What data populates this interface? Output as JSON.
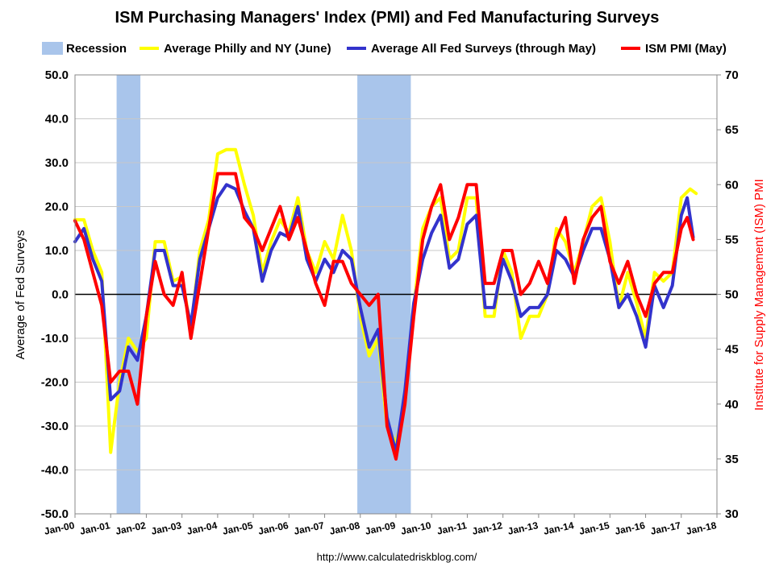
{
  "chart_data": {
    "type": "line",
    "title": "ISM Purchasing Managers' Index (PMI) and Fed Manufacturing Surveys",
    "source_url": "http://www.calculatedriskblog.com/",
    "ylabel_left": "Average of Fed Surveys",
    "ylabel_right": "Institute for Supply Management (ISM) PMI",
    "ylim_left": [
      -50,
      50
    ],
    "ylim_right": [
      30,
      70
    ],
    "yticks_left": [
      "50.0",
      "40.0",
      "30.0",
      "20.0",
      "10.0",
      "0.0",
      "-10.0",
      "-20.0",
      "-30.0",
      "-40.0",
      "-50.0"
    ],
    "yticks_right": [
      "70",
      "65",
      "60",
      "55",
      "50",
      "45",
      "40",
      "35",
      "30"
    ],
    "x_tick_labels": [
      "Jan-00",
      "Jan-01",
      "Jan-02",
      "Jan-03",
      "Jan-04",
      "Jan-05",
      "Jan-06",
      "Jan-07",
      "Jan-08",
      "Jan-09",
      "Jan-10",
      "Jan-11",
      "Jan-12",
      "Jan-13",
      "Jan-14",
      "Jan-15",
      "Jan-16",
      "Jan-17",
      "Jan-18"
    ],
    "xlim": [
      "2000-01",
      "2018-01"
    ],
    "grid": "horizontal",
    "legend_position": "top",
    "zero_line": 0,
    "recessions": [
      {
        "start": "2001-03",
        "end": "2001-11"
      },
      {
        "start": "2007-12",
        "end": "2009-06"
      }
    ],
    "legend": [
      {
        "label": "Recession",
        "color": "#a9c5eb",
        "kind": "box"
      },
      {
        "label": "Average Philly and NY (June)",
        "color": "#ffff00",
        "kind": "line"
      },
      {
        "label": "Average All Fed Surveys (through May)",
        "color": "#3333cc",
        "kind": "line"
      },
      {
        "label": "ISM PMI (May)",
        "color": "#ff0000",
        "kind": "line"
      }
    ],
    "series": [
      {
        "name": "Average Philly and NY (June)",
        "axis": "left",
        "color": "#ffff00",
        "points": [
          [
            "2000-01",
            17
          ],
          [
            "2000-04",
            17
          ],
          [
            "2000-07",
            10
          ],
          [
            "2000-10",
            5
          ],
          [
            "2001-01",
            -36
          ],
          [
            "2001-04",
            -20
          ],
          [
            "2001-07",
            -10
          ],
          [
            "2001-10",
            -13
          ],
          [
            "2002-01",
            -10
          ],
          [
            "2002-04",
            12
          ],
          [
            "2002-07",
            12
          ],
          [
            "2002-10",
            3
          ],
          [
            "2003-01",
            4
          ],
          [
            "2003-04",
            -8
          ],
          [
            "2003-07",
            10
          ],
          [
            "2003-10",
            17
          ],
          [
            "2004-01",
            32
          ],
          [
            "2004-04",
            33
          ],
          [
            "2004-07",
            33
          ],
          [
            "2004-10",
            25
          ],
          [
            "2005-01",
            18
          ],
          [
            "2005-04",
            5
          ],
          [
            "2005-07",
            12
          ],
          [
            "2005-10",
            17
          ],
          [
            "2006-01",
            14
          ],
          [
            "2006-04",
            22
          ],
          [
            "2006-07",
            10
          ],
          [
            "2006-10",
            5
          ],
          [
            "2007-01",
            12
          ],
          [
            "2007-04",
            8
          ],
          [
            "2007-07",
            18
          ],
          [
            "2007-10",
            10
          ],
          [
            "2008-01",
            -5
          ],
          [
            "2008-04",
            -14
          ],
          [
            "2008-07",
            -10
          ],
          [
            "2008-10",
            -30
          ],
          [
            "2009-01",
            -34
          ],
          [
            "2009-04",
            -25
          ],
          [
            "2009-07",
            -3
          ],
          [
            "2009-10",
            15
          ],
          [
            "2010-01",
            20
          ],
          [
            "2010-04",
            22
          ],
          [
            "2010-07",
            8
          ],
          [
            "2010-10",
            10
          ],
          [
            "2011-01",
            22
          ],
          [
            "2011-04",
            22
          ],
          [
            "2011-07",
            -5
          ],
          [
            "2011-10",
            -5
          ],
          [
            "2012-01",
            10
          ],
          [
            "2012-04",
            5
          ],
          [
            "2012-07",
            -10
          ],
          [
            "2012-10",
            -5
          ],
          [
            "2013-01",
            -5
          ],
          [
            "2013-04",
            0
          ],
          [
            "2013-07",
            15
          ],
          [
            "2013-10",
            12
          ],
          [
            "2014-01",
            5
          ],
          [
            "2014-04",
            12
          ],
          [
            "2014-07",
            20
          ],
          [
            "2014-10",
            22
          ],
          [
            "2015-01",
            12
          ],
          [
            "2015-04",
            -3
          ],
          [
            "2015-07",
            5
          ],
          [
            "2015-10",
            -2
          ],
          [
            "2016-01",
            -10
          ],
          [
            "2016-04",
            5
          ],
          [
            "2016-07",
            3
          ],
          [
            "2016-10",
            5
          ],
          [
            "2017-01",
            22
          ],
          [
            "2017-04",
            24
          ],
          [
            "2017-06",
            23
          ]
        ]
      },
      {
        "name": "Average All Fed Surveys (through May)",
        "axis": "left",
        "color": "#3333cc",
        "points": [
          [
            "2000-01",
            12
          ],
          [
            "2000-04",
            15
          ],
          [
            "2000-07",
            8
          ],
          [
            "2000-10",
            3
          ],
          [
            "2001-01",
            -24
          ],
          [
            "2001-04",
            -22
          ],
          [
            "2001-07",
            -12
          ],
          [
            "2001-10",
            -15
          ],
          [
            "2002-01",
            -5
          ],
          [
            "2002-04",
            10
          ],
          [
            "2002-07",
            10
          ],
          [
            "2002-10",
            2
          ],
          [
            "2003-01",
            2
          ],
          [
            "2003-04",
            -7
          ],
          [
            "2003-07",
            8
          ],
          [
            "2003-10",
            15
          ],
          [
            "2004-01",
            22
          ],
          [
            "2004-04",
            25
          ],
          [
            "2004-07",
            24
          ],
          [
            "2004-10",
            19
          ],
          [
            "2005-01",
            15
          ],
          [
            "2005-04",
            3
          ],
          [
            "2005-07",
            10
          ],
          [
            "2005-10",
            14
          ],
          [
            "2006-01",
            13
          ],
          [
            "2006-04",
            20
          ],
          [
            "2006-07",
            8
          ],
          [
            "2006-10",
            3
          ],
          [
            "2007-01",
            8
          ],
          [
            "2007-04",
            5
          ],
          [
            "2007-07",
            10
          ],
          [
            "2007-10",
            8
          ],
          [
            "2008-01",
            -3
          ],
          [
            "2008-04",
            -12
          ],
          [
            "2008-07",
            -8
          ],
          [
            "2008-10",
            -28
          ],
          [
            "2009-01",
            -36
          ],
          [
            "2009-04",
            -22
          ],
          [
            "2009-07",
            -2
          ],
          [
            "2009-10",
            8
          ],
          [
            "2010-01",
            14
          ],
          [
            "2010-04",
            18
          ],
          [
            "2010-07",
            6
          ],
          [
            "2010-10",
            8
          ],
          [
            "2011-01",
            16
          ],
          [
            "2011-04",
            18
          ],
          [
            "2011-07",
            -3
          ],
          [
            "2011-10",
            -3
          ],
          [
            "2012-01",
            8
          ],
          [
            "2012-04",
            3
          ],
          [
            "2012-07",
            -5
          ],
          [
            "2012-10",
            -3
          ],
          [
            "2013-01",
            -3
          ],
          [
            "2013-04",
            0
          ],
          [
            "2013-07",
            10
          ],
          [
            "2013-10",
            8
          ],
          [
            "2014-01",
            4
          ],
          [
            "2014-04",
            10
          ],
          [
            "2014-07",
            15
          ],
          [
            "2014-10",
            15
          ],
          [
            "2015-01",
            8
          ],
          [
            "2015-04",
            -3
          ],
          [
            "2015-07",
            0
          ],
          [
            "2015-10",
            -5
          ],
          [
            "2016-01",
            -12
          ],
          [
            "2016-04",
            2
          ],
          [
            "2016-07",
            -3
          ],
          [
            "2016-10",
            2
          ],
          [
            "2017-01",
            18
          ],
          [
            "2017-03",
            22
          ],
          [
            "2017-05",
            13
          ]
        ]
      },
      {
        "name": "ISM PMI (May)",
        "axis": "right",
        "color": "#ff0000",
        "points": [
          [
            "2000-01",
            56.7
          ],
          [
            "2000-04",
            55
          ],
          [
            "2000-07",
            52
          ],
          [
            "2000-10",
            49
          ],
          [
            "2001-01",
            42
          ],
          [
            "2001-04",
            43
          ],
          [
            "2001-07",
            43
          ],
          [
            "2001-10",
            40
          ],
          [
            "2002-01",
            48
          ],
          [
            "2002-04",
            53
          ],
          [
            "2002-07",
            50
          ],
          [
            "2002-10",
            49
          ],
          [
            "2003-01",
            52
          ],
          [
            "2003-04",
            46
          ],
          [
            "2003-07",
            51
          ],
          [
            "2003-10",
            56
          ],
          [
            "2004-01",
            61
          ],
          [
            "2004-04",
            61
          ],
          [
            "2004-07",
            61
          ],
          [
            "2004-10",
            57
          ],
          [
            "2005-01",
            56
          ],
          [
            "2005-04",
            54
          ],
          [
            "2005-07",
            56
          ],
          [
            "2005-10",
            58
          ],
          [
            "2006-01",
            55
          ],
          [
            "2006-04",
            57
          ],
          [
            "2006-07",
            54
          ],
          [
            "2006-10",
            51
          ],
          [
            "2007-01",
            49
          ],
          [
            "2007-04",
            53
          ],
          [
            "2007-07",
            53
          ],
          [
            "2007-10",
            51
          ],
          [
            "2008-01",
            50
          ],
          [
            "2008-04",
            49
          ],
          [
            "2008-07",
            50
          ],
          [
            "2008-10",
            38
          ],
          [
            "2009-01",
            35
          ],
          [
            "2009-04",
            40
          ],
          [
            "2009-07",
            48
          ],
          [
            "2009-10",
            55
          ],
          [
            "2010-01",
            58
          ],
          [
            "2010-04",
            60
          ],
          [
            "2010-07",
            55
          ],
          [
            "2010-10",
            57
          ],
          [
            "2011-01",
            60
          ],
          [
            "2011-04",
            60
          ],
          [
            "2011-07",
            51
          ],
          [
            "2011-10",
            51
          ],
          [
            "2012-01",
            54
          ],
          [
            "2012-04",
            54
          ],
          [
            "2012-07",
            50
          ],
          [
            "2012-10",
            51
          ],
          [
            "2013-01",
            53
          ],
          [
            "2013-04",
            51
          ],
          [
            "2013-07",
            55
          ],
          [
            "2013-10",
            57
          ],
          [
            "2014-01",
            51
          ],
          [
            "2014-04",
            55
          ],
          [
            "2014-07",
            57
          ],
          [
            "2014-10",
            58
          ],
          [
            "2015-01",
            53
          ],
          [
            "2015-04",
            51
          ],
          [
            "2015-07",
            53
          ],
          [
            "2015-10",
            50
          ],
          [
            "2016-01",
            48
          ],
          [
            "2016-04",
            51
          ],
          [
            "2016-07",
            52
          ],
          [
            "2016-10",
            52
          ],
          [
            "2017-01",
            56
          ],
          [
            "2017-03",
            57
          ],
          [
            "2017-05",
            55
          ]
        ]
      }
    ]
  }
}
